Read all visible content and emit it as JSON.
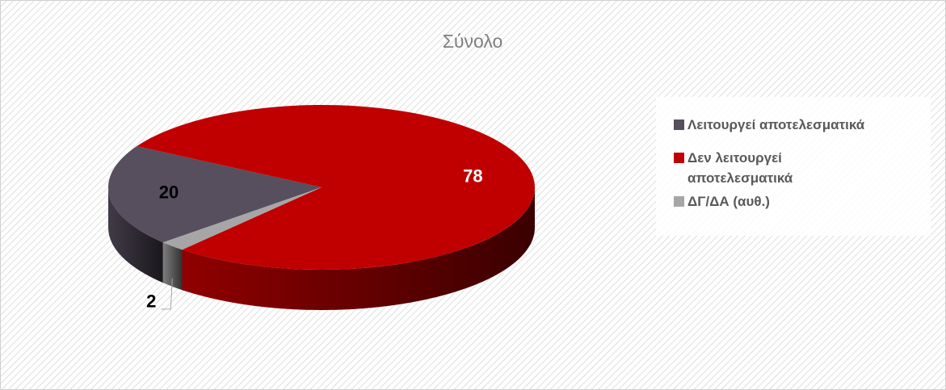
{
  "chart_data": {
    "type": "pie",
    "title": "Σύνολο",
    "categories": [
      "Λειτουργεί αποτελεσματικά",
      "Δεν λειτουργεί αποτελεσματικά",
      "ΔΓ/ΔΑ (αυθ.)"
    ],
    "values": [
      20,
      78,
      2
    ],
    "colors": [
      "#574e5e",
      "#c00000",
      "#a6a6a6"
    ],
    "legend": "right"
  }
}
